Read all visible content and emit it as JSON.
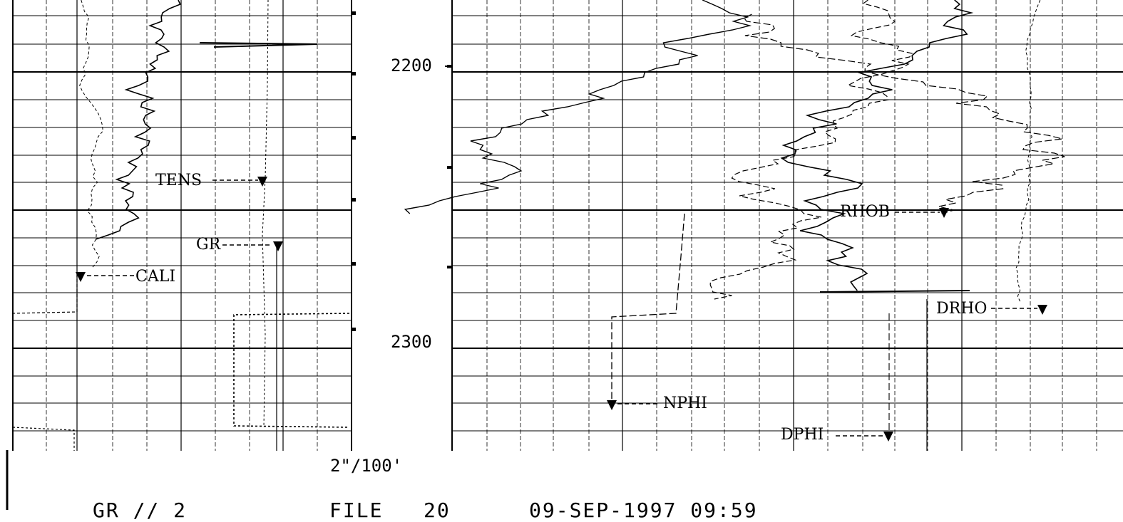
{
  "chart_data": {
    "type": "line",
    "depth_axis": {
      "labels": [
        "2200",
        "2300"
      ],
      "scale": "2\"/100'"
    },
    "track1": {
      "curves": [
        {
          "name": "TENS",
          "style": "long-dash"
        },
        {
          "name": "GR",
          "style": "solid"
        },
        {
          "name": "CALI",
          "style": "dashed"
        }
      ]
    },
    "track2": {
      "curves": [
        {
          "name": "RHOB",
          "style": "solid"
        },
        {
          "name": "DRHO",
          "style": "dashed"
        },
        {
          "name": "NPHI",
          "style": "long-dash"
        },
        {
          "name": "DPHI",
          "style": "dashed"
        }
      ]
    },
    "grid": true
  },
  "footer": {
    "run": "GR // 2",
    "file": "FILE   20",
    "datetime": "09-SEP-1997 09:59"
  }
}
